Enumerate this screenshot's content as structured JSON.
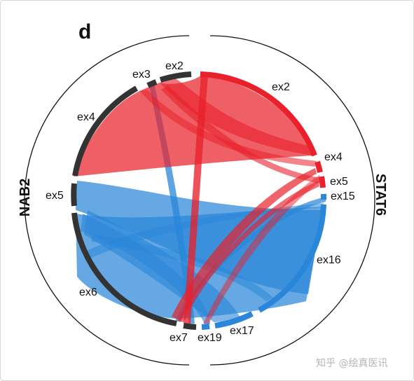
{
  "panel_letter": "d",
  "genes": {
    "left": "NAB2",
    "right": "STAT6"
  },
  "exons": {
    "ex2_left": "ex2",
    "ex3": "ex3",
    "ex4_left": "ex4",
    "ex5_left": "ex5",
    "ex6": "ex6",
    "ex7": "ex7",
    "ex19": "ex19",
    "ex17": "ex17",
    "ex16": "ex16",
    "ex15": "ex15",
    "ex5_right": "ex5",
    "ex4_right": "ex4",
    "ex2_right": "ex2"
  },
  "colors": {
    "red": "#e8212b",
    "blue": "#2a86d8",
    "dark": "#333333"
  },
  "watermark": "知乎 @绘真医讯"
}
